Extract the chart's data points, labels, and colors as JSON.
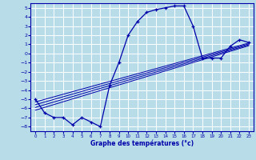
{
  "xlabel": "Graphe des températures (°c)",
  "xlim": [
    -0.5,
    23.5
  ],
  "ylim": [
    -8.5,
    5.5
  ],
  "yticks": [
    5,
    4,
    3,
    2,
    1,
    0,
    -1,
    -2,
    -3,
    -4,
    -5,
    -6,
    -7,
    -8
  ],
  "xticks": [
    0,
    1,
    2,
    3,
    4,
    5,
    6,
    7,
    8,
    9,
    10,
    11,
    12,
    13,
    14,
    15,
    16,
    17,
    18,
    19,
    20,
    21,
    22,
    23
  ],
  "background_color": "#b8dde8",
  "grid_color": "#ffffff",
  "line_color": "#0000aa",
  "main_x": [
    0,
    1,
    2,
    3,
    4,
    5,
    6,
    7,
    8,
    9,
    10,
    11,
    12,
    13,
    14,
    15,
    16,
    17,
    18,
    19,
    20,
    21,
    22,
    23
  ],
  "main_y": [
    -5.0,
    -6.5,
    -7.0,
    -7.0,
    -7.8,
    -7.0,
    -7.5,
    -8.0,
    -3.5,
    -1.0,
    2.0,
    3.5,
    4.5,
    4.8,
    5.0,
    5.2,
    5.2,
    3.0,
    -0.5,
    -0.5,
    -0.5,
    0.8,
    1.5,
    1.2
  ],
  "line2_x": [
    0,
    23
  ],
  "line2_y": [
    -5.3,
    1.15
  ],
  "line3_x": [
    0,
    23
  ],
  "line3_y": [
    -5.6,
    1.05
  ],
  "line4_x": [
    0,
    23
  ],
  "line4_y": [
    -5.9,
    0.95
  ],
  "line5_x": [
    0,
    23
  ],
  "line5_y": [
    -6.2,
    0.85
  ]
}
